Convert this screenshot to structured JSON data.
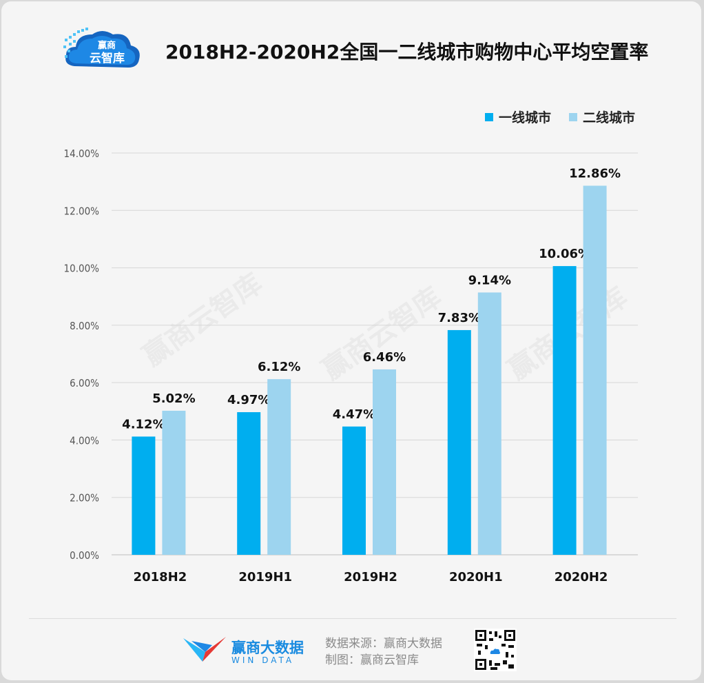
{
  "header": {
    "logo_text_top": "赢商",
    "logo_text_bottom": "云智库",
    "title": "2018H2-2020H2全国一二线城市购物中心平均空置率"
  },
  "legend": [
    {
      "label": "一线城市",
      "color": "#00aeef"
    },
    {
      "label": "二线城市",
      "color": "#9dd4ef"
    }
  ],
  "watermark": "赢商云智库",
  "chart_data": {
    "type": "bar",
    "categories": [
      "2018H2",
      "2019H1",
      "2019H2",
      "2020H1",
      "2020H2"
    ],
    "series": [
      {
        "name": "一线城市",
        "values": [
          4.12,
          4.97,
          4.47,
          7.83,
          10.06
        ],
        "labels": [
          "4.12%",
          "4.97%",
          "4.47%",
          "7.83%",
          "10.06%"
        ],
        "color": "#00aeef"
      },
      {
        "name": "二线城市",
        "values": [
          5.02,
          6.12,
          6.46,
          9.14,
          12.86
        ],
        "labels": [
          "5.02%",
          "6.12%",
          "6.46%",
          "9.14%",
          "12.86%"
        ],
        "color": "#9dd4ef"
      }
    ],
    "ylim": [
      0,
      14
    ],
    "yticks": [
      0,
      2,
      4,
      6,
      8,
      10,
      12,
      14
    ],
    "ytick_labels": [
      "0.00%",
      "2.00%",
      "4.00%",
      "6.00%",
      "8.00%",
      "10.00%",
      "12.00%",
      "14.00%"
    ],
    "grid": true,
    "legend_position": "top-right"
  },
  "footer": {
    "brand_name": "赢商大数据",
    "brand_sub": "WIN DATA",
    "source_line1": "数据来源：赢商大数据",
    "source_line2": "制图：赢商云智库"
  }
}
